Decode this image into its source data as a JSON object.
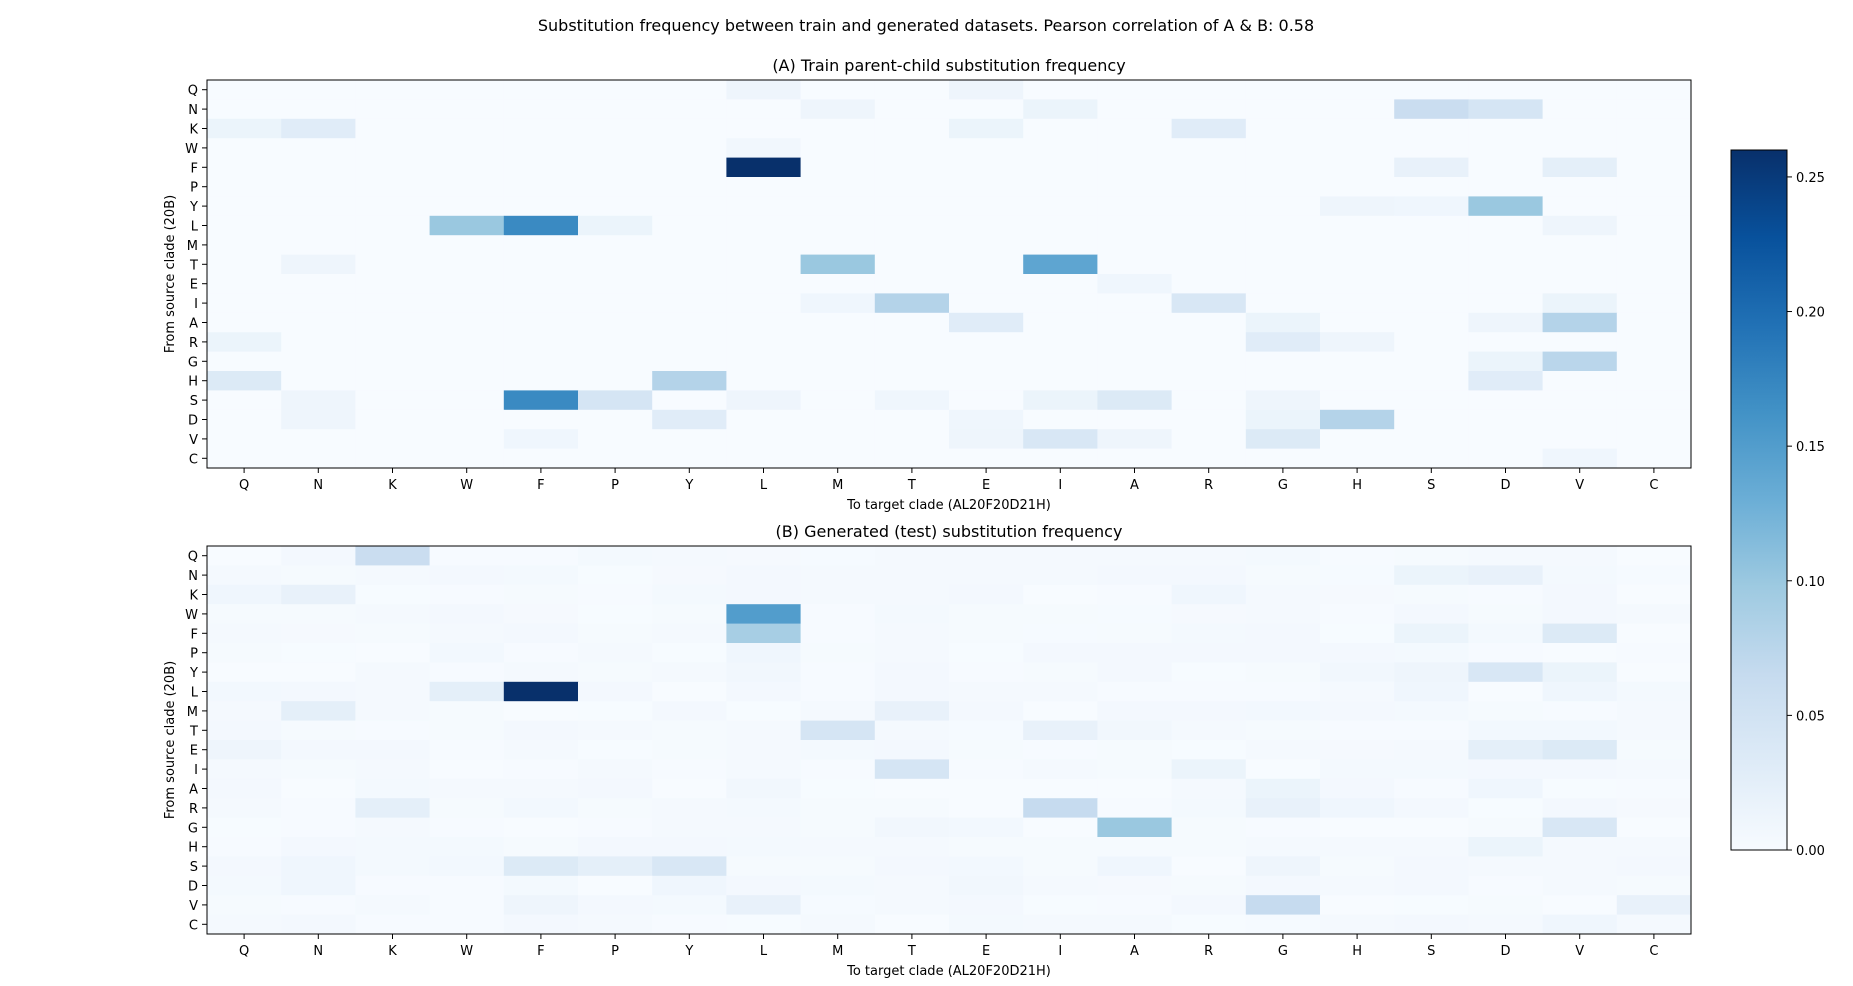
{
  "figure": {
    "suptitle": "Substitution frequency between train and generated datasets. Pearson correlation of A & B: 0.58"
  },
  "chart_data": [
    {
      "type": "heatmap",
      "title": "(A) Train parent-child substitution frequency",
      "xlabel": "To target clade (AL20F20D21H)",
      "ylabel": "From source clade (20B)",
      "x_categories": [
        "Q",
        "N",
        "K",
        "W",
        "F",
        "P",
        "Y",
        "L",
        "M",
        "T",
        "E",
        "I",
        "A",
        "R",
        "G",
        "H",
        "S",
        "D",
        "V",
        "C"
      ],
      "y_categories": [
        "Q",
        "N",
        "K",
        "W",
        "F",
        "P",
        "Y",
        "L",
        "M",
        "T",
        "E",
        "I",
        "A",
        "R",
        "G",
        "H",
        "S",
        "D",
        "V",
        "C"
      ],
      "colormap": "Blues",
      "vmin": 0,
      "vmax": 0.26,
      "cells": [
        {
          "from": "Q",
          "to": "L",
          "value": 0.012
        },
        {
          "from": "Q",
          "to": "E",
          "value": 0.012
        },
        {
          "from": "N",
          "to": "M",
          "value": 0.012
        },
        {
          "from": "N",
          "to": "I",
          "value": 0.015
        },
        {
          "from": "N",
          "to": "S",
          "value": 0.06
        },
        {
          "from": "N",
          "to": "D",
          "value": 0.045
        },
        {
          "from": "K",
          "to": "Q",
          "value": 0.015
        },
        {
          "from": "K",
          "to": "N",
          "value": 0.03
        },
        {
          "from": "K",
          "to": "E",
          "value": 0.015
        },
        {
          "from": "K",
          "to": "R",
          "value": 0.03
        },
        {
          "from": "W",
          "to": "L",
          "value": 0.008
        },
        {
          "from": "F",
          "to": "L",
          "value": 0.26
        },
        {
          "from": "F",
          "to": "S",
          "value": 0.02
        },
        {
          "from": "F",
          "to": "V",
          "value": 0.025
        },
        {
          "from": "Y",
          "to": "H",
          "value": 0.012
        },
        {
          "from": "Y",
          "to": "S",
          "value": 0.01
        },
        {
          "from": "Y",
          "to": "D",
          "value": 0.1
        },
        {
          "from": "L",
          "to": "W",
          "value": 0.1
        },
        {
          "from": "L",
          "to": "F",
          "value": 0.17
        },
        {
          "from": "L",
          "to": "P",
          "value": 0.015
        },
        {
          "from": "L",
          "to": "V",
          "value": 0.012
        },
        {
          "from": "T",
          "to": "N",
          "value": 0.012
        },
        {
          "from": "T",
          "to": "M",
          "value": 0.1
        },
        {
          "from": "T",
          "to": "I",
          "value": 0.14
        },
        {
          "from": "E",
          "to": "A",
          "value": 0.01
        },
        {
          "from": "I",
          "to": "M",
          "value": 0.01
        },
        {
          "from": "I",
          "to": "T",
          "value": 0.08
        },
        {
          "from": "I",
          "to": "R",
          "value": 0.04
        },
        {
          "from": "I",
          "to": "V",
          "value": 0.015
        },
        {
          "from": "A",
          "to": "E",
          "value": 0.03
        },
        {
          "from": "A",
          "to": "G",
          "value": 0.015
        },
        {
          "from": "A",
          "to": "D",
          "value": 0.012
        },
        {
          "from": "A",
          "to": "V",
          "value": 0.08
        },
        {
          "from": "R",
          "to": "Q",
          "value": 0.015
        },
        {
          "from": "R",
          "to": "G",
          "value": 0.03
        },
        {
          "from": "R",
          "to": "H",
          "value": 0.012
        },
        {
          "from": "G",
          "to": "D",
          "value": 0.015
        },
        {
          "from": "G",
          "to": "V",
          "value": 0.075
        },
        {
          "from": "H",
          "to": "Q",
          "value": 0.035
        },
        {
          "from": "H",
          "to": "Y",
          "value": 0.08
        },
        {
          "from": "H",
          "to": "D",
          "value": 0.03
        },
        {
          "from": "S",
          "to": "N",
          "value": 0.012
        },
        {
          "from": "S",
          "to": "F",
          "value": 0.17
        },
        {
          "from": "S",
          "to": "P",
          "value": 0.045
        },
        {
          "from": "S",
          "to": "L",
          "value": 0.012
        },
        {
          "from": "S",
          "to": "T",
          "value": 0.01
        },
        {
          "from": "S",
          "to": "I",
          "value": 0.015
        },
        {
          "from": "S",
          "to": "A",
          "value": 0.035
        },
        {
          "from": "S",
          "to": "G",
          "value": 0.012
        },
        {
          "from": "D",
          "to": "N",
          "value": 0.012
        },
        {
          "from": "D",
          "to": "Y",
          "value": 0.03
        },
        {
          "from": "D",
          "to": "E",
          "value": 0.01
        },
        {
          "from": "D",
          "to": "G",
          "value": 0.015
        },
        {
          "from": "D",
          "to": "H",
          "value": 0.08
        },
        {
          "from": "V",
          "to": "F",
          "value": 0.01
        },
        {
          "from": "V",
          "to": "E",
          "value": 0.012
        },
        {
          "from": "V",
          "to": "I",
          "value": 0.04
        },
        {
          "from": "V",
          "to": "A",
          "value": 0.012
        },
        {
          "from": "V",
          "to": "G",
          "value": 0.035
        },
        {
          "from": "C",
          "to": "V",
          "value": 0.01
        }
      ]
    },
    {
      "type": "heatmap",
      "title": "(B) Generated (test) substitution frequency",
      "xlabel": "To target clade (AL20F20D21H)",
      "ylabel": "From source clade (20B)",
      "x_categories": [
        "Q",
        "N",
        "K",
        "W",
        "F",
        "P",
        "Y",
        "L",
        "M",
        "T",
        "E",
        "I",
        "A",
        "R",
        "G",
        "H",
        "S",
        "D",
        "V",
        "C"
      ],
      "y_categories": [
        "Q",
        "N",
        "K",
        "W",
        "F",
        "P",
        "Y",
        "L",
        "M",
        "T",
        "E",
        "I",
        "A",
        "R",
        "G",
        "H",
        "S",
        "D",
        "V",
        "C"
      ],
      "colormap": "Blues",
      "vmin": 0,
      "vmax": 0.26,
      "cells": [
        {
          "from": "Q",
          "to": "K",
          "value": 0.06
        },
        {
          "from": "Q",
          "to": "P",
          "value": 0.005
        },
        {
          "from": "N",
          "to": "K",
          "value": 0.004
        },
        {
          "from": "N",
          "to": "M",
          "value": 0.004
        },
        {
          "from": "N",
          "to": "S",
          "value": 0.015
        },
        {
          "from": "N",
          "to": "D",
          "value": 0.02
        },
        {
          "from": "K",
          "to": "Q",
          "value": 0.01
        },
        {
          "from": "K",
          "to": "N",
          "value": 0.02
        },
        {
          "from": "K",
          "to": "Y",
          "value": 0.005
        },
        {
          "from": "K",
          "to": "R",
          "value": 0.01
        },
        {
          "from": "W",
          "to": "L",
          "value": 0.15
        },
        {
          "from": "W",
          "to": "T",
          "value": 0.005
        },
        {
          "from": "F",
          "to": "L",
          "value": 0.09
        },
        {
          "from": "F",
          "to": "S",
          "value": 0.015
        },
        {
          "from": "F",
          "to": "V",
          "value": 0.035
        },
        {
          "from": "P",
          "to": "L",
          "value": 0.01
        },
        {
          "from": "Y",
          "to": "L",
          "value": 0.008
        },
        {
          "from": "Y",
          "to": "H",
          "value": 0.008
        },
        {
          "from": "Y",
          "to": "S",
          "value": 0.012
        },
        {
          "from": "Y",
          "to": "D",
          "value": 0.04
        },
        {
          "from": "Y",
          "to": "V",
          "value": 0.015
        },
        {
          "from": "L",
          "to": "Q",
          "value": 0.006
        },
        {
          "from": "L",
          "to": "W",
          "value": 0.025
        },
        {
          "from": "L",
          "to": "F",
          "value": 0.26
        },
        {
          "from": "L",
          "to": "S",
          "value": 0.01
        },
        {
          "from": "L",
          "to": "V",
          "value": 0.01
        },
        {
          "from": "M",
          "to": "N",
          "value": 0.025
        },
        {
          "from": "M",
          "to": "T",
          "value": 0.02
        },
        {
          "from": "T",
          "to": "M",
          "value": 0.045
        },
        {
          "from": "T",
          "to": "I",
          "value": 0.02
        },
        {
          "from": "T",
          "to": "A",
          "value": 0.008
        },
        {
          "from": "E",
          "to": "Q",
          "value": 0.012
        },
        {
          "from": "E",
          "to": "D",
          "value": 0.025
        },
        {
          "from": "E",
          "to": "V",
          "value": 0.035
        },
        {
          "from": "I",
          "to": "T",
          "value": 0.045
        },
        {
          "from": "I",
          "to": "R",
          "value": 0.015
        },
        {
          "from": "A",
          "to": "L",
          "value": 0.008
        },
        {
          "from": "A",
          "to": "G",
          "value": 0.015
        },
        {
          "from": "A",
          "to": "D",
          "value": 0.01
        },
        {
          "from": "R",
          "to": "K",
          "value": 0.025
        },
        {
          "from": "R",
          "to": "I",
          "value": 0.065
        },
        {
          "from": "R",
          "to": "G",
          "value": 0.02
        },
        {
          "from": "R",
          "to": "H",
          "value": 0.01
        },
        {
          "from": "G",
          "to": "A",
          "value": 0.1
        },
        {
          "from": "G",
          "to": "V",
          "value": 0.04
        },
        {
          "from": "G",
          "to": "T",
          "value": 0.008
        },
        {
          "from": "H",
          "to": "D",
          "value": 0.015
        },
        {
          "from": "S",
          "to": "N",
          "value": 0.01
        },
        {
          "from": "S",
          "to": "F",
          "value": 0.035
        },
        {
          "from": "S",
          "to": "P",
          "value": 0.025
        },
        {
          "from": "S",
          "to": "Y",
          "value": 0.04
        },
        {
          "from": "S",
          "to": "A",
          "value": 0.01
        },
        {
          "from": "S",
          "to": "G",
          "value": 0.012
        },
        {
          "from": "D",
          "to": "N",
          "value": 0.01
        },
        {
          "from": "D",
          "to": "Y",
          "value": 0.01
        },
        {
          "from": "D",
          "to": "E",
          "value": 0.008
        },
        {
          "from": "V",
          "to": "F",
          "value": 0.012
        },
        {
          "from": "V",
          "to": "L",
          "value": 0.02
        },
        {
          "from": "V",
          "to": "G",
          "value": 0.065
        },
        {
          "from": "V",
          "to": "C",
          "value": 0.02
        },
        {
          "from": "C",
          "to": "V",
          "value": 0.01
        }
      ],
      "background_noise": true
    }
  ],
  "colorbar": {
    "ticks": [
      "0.00",
      "0.05",
      "0.10",
      "0.15",
      "0.20",
      "0.25"
    ],
    "tick_values": [
      0,
      0.05,
      0.1,
      0.15,
      0.2,
      0.25
    ],
    "min": 0,
    "max": 0.26
  }
}
